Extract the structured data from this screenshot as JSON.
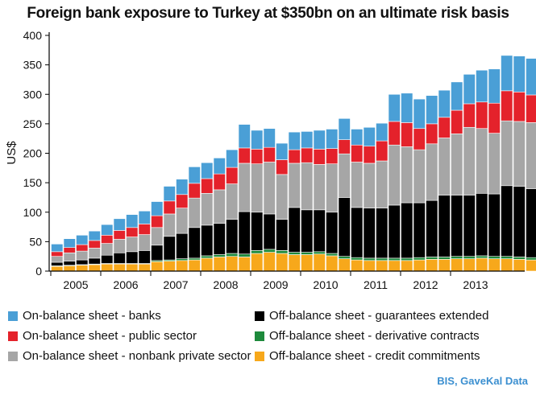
{
  "title": "Foreign bank exposure to Turkey at $350bn on an ultimate risk basis",
  "source": "BIS, GaveKal Data",
  "colors": {
    "on_banks": "#4a9fd6",
    "on_public": "#e4222b",
    "on_nonbank": "#a6a6a6",
    "off_guarantees": "#000000",
    "off_derivative": "#1e8a3c",
    "off_credit": "#f7a81b"
  },
  "chart_data": {
    "type": "bar",
    "stacked": true,
    "ylabel": "US$",
    "ylim": [
      0,
      400
    ],
    "yticks": [
      0,
      50,
      100,
      150,
      200,
      250,
      300,
      350,
      400
    ],
    "year_labels": [
      "2005",
      "2006",
      "2007",
      "2008",
      "2009",
      "2010",
      "2011",
      "2012",
      "2013"
    ],
    "bars_per_year": 4,
    "grid": false,
    "legend_position": "bottom",
    "series": [
      {
        "name": "Off-balance sheet - credit commitments",
        "color_key": "off_credit",
        "values": [
          8,
          9,
          10,
          11,
          12,
          12,
          12,
          12,
          16,
          17,
          18,
          19,
          22,
          24,
          25,
          24,
          30,
          32,
          30,
          28,
          28,
          29,
          26,
          21,
          19,
          18,
          18,
          18,
          18,
          19,
          20,
          20,
          21,
          21,
          22,
          21,
          21,
          20,
          19
        ]
      },
      {
        "name": "Off-balance sheet - derivative contracts",
        "color_key": "off_derivative",
        "values": [
          1,
          1,
          1,
          1,
          1,
          1,
          1,
          1,
          2,
          2,
          3,
          3,
          4,
          4,
          5,
          5,
          5,
          5,
          5,
          4,
          4,
          4,
          4,
          4,
          4,
          4,
          4,
          4,
          4,
          4,
          4,
          4,
          4,
          4,
          4,
          4,
          4,
          4,
          4
        ]
      },
      {
        "name": "Off-balance sheet - guarantees extended",
        "color_key": "off_guarantees",
        "values": [
          6,
          7,
          8,
          10,
          14,
          18,
          20,
          22,
          26,
          40,
          43,
          52,
          52,
          53,
          58,
          72,
          65,
          60,
          53,
          76,
          72,
          71,
          70,
          100,
          85,
          85,
          85,
          90,
          94,
          93,
          96,
          105,
          104,
          104,
          106,
          106,
          120,
          120,
          117
        ]
      },
      {
        "name": "On-balance sheet - nonbank private sector",
        "color_key": "on_nonbank",
        "values": [
          10,
          14,
          15,
          17,
          20,
          23,
          25,
          27,
          30,
          38,
          43,
          50,
          54,
          57,
          60,
          82,
          82,
          88,
          76,
          75,
          80,
          77,
          82,
          74,
          77,
          76,
          80,
          102,
          95,
          90,
          96,
          97,
          104,
          115,
          110,
          103,
          110,
          110,
          112
        ]
      },
      {
        "name": "On-balance sheet - public sector",
        "color_key": "on_public",
        "values": [
          8,
          9,
          11,
          13,
          14,
          15,
          16,
          18,
          20,
          22,
          23,
          25,
          25,
          27,
          28,
          26,
          25,
          25,
          25,
          23,
          25,
          26,
          26,
          24,
          29,
          29,
          34,
          40,
          41,
          36,
          34,
          35,
          40,
          40,
          45,
          51,
          51,
          50,
          47
        ]
      },
      {
        "name": "On-balance sheet - banks",
        "color_key": "on_banks",
        "values": [
          13,
          15,
          16,
          16,
          18,
          20,
          22,
          22,
          24,
          25,
          26,
          28,
          27,
          27,
          30,
          40,
          32,
          32,
          28,
          30,
          28,
          32,
          33,
          36,
          27,
          32,
          30,
          46,
          50,
          50,
          48,
          46,
          48,
          50,
          54,
          58,
          60,
          61,
          62
        ]
      }
    ]
  },
  "legend": [
    {
      "label": "On-balance sheet - banks",
      "color_key": "on_banks"
    },
    {
      "label": "Off-balance sheet - guarantees extended",
      "color_key": "off_guarantees"
    },
    {
      "label": "On-balance sheet - public sector",
      "color_key": "on_public"
    },
    {
      "label": "Off-balance sheet - derivative contracts",
      "color_key": "off_derivative"
    },
    {
      "label": "On-balance sheet - nonbank private sector",
      "color_key": "on_nonbank"
    },
    {
      "label": "Off-balance sheet - credit commitments",
      "color_key": "off_credit"
    }
  ]
}
